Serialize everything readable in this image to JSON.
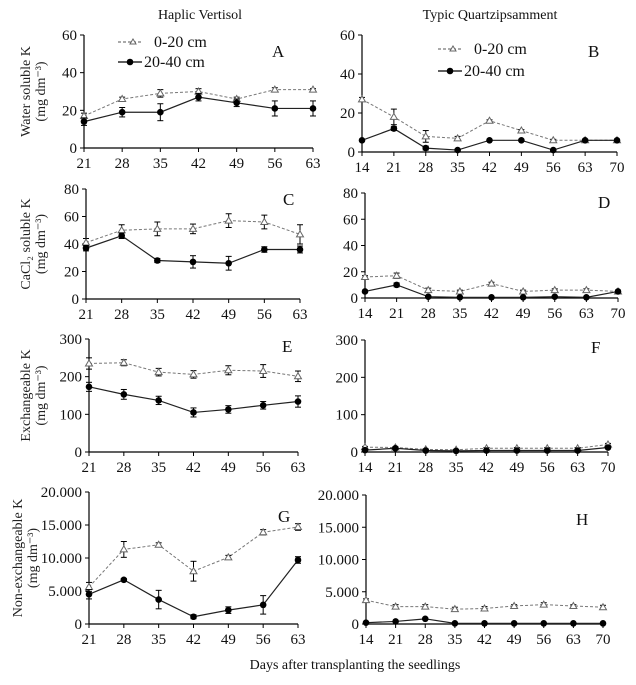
{
  "figure": {
    "column_titles": [
      "Haplic Vertisol",
      "Typic Quartzipsamment"
    ],
    "xlabel": "Days after transplanting the seedlings",
    "legend": {
      "series_a": "0-20 cm",
      "series_b": "20-40 cm"
    }
  },
  "chart_data": [
    {
      "type": "line",
      "panel": "A",
      "soil": "Haplic Vertisol",
      "ylabel_line1": "Water soluble K",
      "ylabel_line2": "(mg dm⁻³)",
      "x": [
        21,
        28,
        35,
        42,
        49,
        56,
        63
      ],
      "xticks": [
        "21",
        "28",
        "35",
        "42",
        "49",
        "56",
        "63"
      ],
      "ylim": [
        0,
        60
      ],
      "yticks": [
        "0",
        "20",
        "40",
        "60"
      ],
      "ytick_values": [
        0,
        20,
        40,
        60
      ],
      "legend": "top-left",
      "series": [
        {
          "name": "0-20 cm",
          "values": [
            17,
            26,
            29,
            30,
            26,
            31,
            31
          ],
          "errors": [
            1.5,
            1,
            2,
            1.5,
            1,
            1,
            0.5
          ]
        },
        {
          "name": "20-40 cm",
          "values": [
            14,
            19,
            19,
            27,
            24,
            21,
            21
          ],
          "errors": [
            2,
            2.5,
            4.5,
            2,
            2,
            4,
            4
          ]
        }
      ]
    },
    {
      "type": "line",
      "panel": "B",
      "soil": "Typic Quartzipsamment",
      "ylabel_line1": "",
      "ylabel_line2": "",
      "x": [
        14,
        21,
        28,
        35,
        42,
        49,
        56,
        63,
        70
      ],
      "xticks": [
        "14",
        "21",
        "28",
        "35",
        "42",
        "49",
        "56",
        "63",
        "70"
      ],
      "ylim": [
        0,
        60
      ],
      "yticks": [
        "0",
        "20",
        "40",
        "60"
      ],
      "ytick_values": [
        0,
        20,
        40,
        60
      ],
      "legend": "top-center",
      "series": [
        {
          "name": "0-20 cm",
          "values": [
            27,
            18,
            8,
            7,
            16,
            11,
            6,
            6,
            6
          ],
          "errors": [
            1,
            4,
            3,
            1,
            0.5,
            0.5,
            0.5,
            0.5,
            0.5
          ]
        },
        {
          "name": "20-40 cm",
          "values": [
            6,
            12,
            2,
            1,
            6,
            6,
            1,
            6,
            6
          ],
          "errors": [
            0.5,
            1,
            1,
            0.5,
            0.5,
            0.5,
            0.5,
            0.5,
            0.5
          ]
        }
      ]
    },
    {
      "type": "line",
      "panel": "C",
      "soil": "Haplic Vertisol",
      "ylabel_line1": "CaCl₂ soluble K",
      "ylabel_line2": "(mg dm⁻³)",
      "x": [
        21,
        28,
        35,
        42,
        49,
        56,
        63
      ],
      "xticks": [
        "21",
        "28",
        "35",
        "42",
        "49",
        "56",
        "63"
      ],
      "ylim": [
        0,
        80
      ],
      "yticks": [
        "0",
        "20",
        "40",
        "60",
        "80"
      ],
      "ytick_values": [
        0,
        20,
        40,
        60,
        80
      ],
      "series": [
        {
          "name": "0-20 cm",
          "values": [
            41,
            50,
            51,
            51,
            57,
            56,
            47
          ],
          "errors": [
            3,
            4,
            5,
            3.5,
            5,
            5,
            7
          ]
        },
        {
          "name": "20-40 cm",
          "values": [
            37,
            46,
            28,
            27,
            26,
            36,
            36
          ],
          "errors": [
            2,
            2,
            1.5,
            4.5,
            5,
            2,
            2.5
          ]
        }
      ]
    },
    {
      "type": "line",
      "panel": "D",
      "soil": "Typic Quartzipsamment",
      "ylabel_line1": "",
      "ylabel_line2": "",
      "x": [
        14,
        21,
        28,
        35,
        42,
        49,
        56,
        63,
        70
      ],
      "xticks": [
        "14",
        "21",
        "28",
        "35",
        "42",
        "49",
        "56",
        "63",
        "70"
      ],
      "ylim": [
        0,
        80
      ],
      "yticks": [
        "0",
        "20",
        "40",
        "60",
        "80"
      ],
      "ytick_values": [
        0,
        20,
        40,
        60,
        80
      ],
      "series": [
        {
          "name": "0-20 cm",
          "values": [
            16,
            17,
            6,
            5,
            11,
            5,
            6,
            6,
            5
          ],
          "errors": [
            1,
            2,
            1.5,
            1,
            1,
            1,
            1,
            1,
            0.5
          ]
        },
        {
          "name": "20-40 cm",
          "values": [
            5,
            10,
            1,
            0.5,
            0.5,
            0.5,
            1,
            0.5,
            5
          ],
          "errors": [
            0.5,
            1.5,
            0.5,
            0.3,
            0.3,
            0.3,
            0.3,
            0.3,
            0.5
          ]
        }
      ]
    },
    {
      "type": "line",
      "panel": "E",
      "soil": "Haplic Vertisol",
      "ylabel_line1": "Exchangeable K",
      "ylabel_line2": "(mg dm⁻³)",
      "x": [
        21,
        28,
        35,
        42,
        49,
        56,
        63
      ],
      "xticks": [
        "21",
        "28",
        "35",
        "42",
        "49",
        "56",
        "63"
      ],
      "ylim": [
        0,
        300
      ],
      "yticks": [
        "0",
        "100",
        "200",
        "300"
      ],
      "ytick_values": [
        0,
        100,
        200,
        300
      ],
      "series": [
        {
          "name": "0-20 cm",
          "values": [
            235,
            237,
            212,
            206,
            217,
            215,
            201
          ],
          "errors": [
            15,
            8,
            10,
            10,
            12,
            17,
            14
          ]
        },
        {
          "name": "20-40 cm",
          "values": [
            173,
            153,
            137,
            105,
            113,
            124,
            134
          ],
          "errors": [
            12,
            13,
            11,
            12,
            10,
            10,
            15
          ]
        }
      ]
    },
    {
      "type": "line",
      "panel": "F",
      "soil": "Typic Quartzipsamment",
      "ylabel_line1": "",
      "ylabel_line2": "",
      "x": [
        14,
        21,
        28,
        35,
        42,
        49,
        56,
        63,
        70
      ],
      "xticks": [
        "14",
        "21",
        "28",
        "35",
        "42",
        "49",
        "56",
        "63",
        "70"
      ],
      "ylim": [
        0,
        300
      ],
      "yticks": [
        "0",
        "100",
        "200",
        "300"
      ],
      "ytick_values": [
        0,
        100,
        200,
        300
      ],
      "series": [
        {
          "name": "0-20 cm",
          "values": [
            13,
            12,
            7,
            6,
            10,
            10,
            10,
            10,
            20
          ],
          "errors": [
            2,
            2,
            1,
            1,
            2,
            2,
            2,
            2,
            3
          ]
        },
        {
          "name": "20-40 cm",
          "values": [
            5,
            10,
            4,
            3,
            4,
            4,
            4,
            4,
            12
          ],
          "errors": [
            2,
            2,
            1,
            1,
            1,
            1,
            1,
            1,
            3
          ]
        }
      ]
    },
    {
      "type": "line",
      "panel": "G",
      "soil": "Haplic Vertisol",
      "ylabel_line1": "Non-exchangeable K",
      "ylabel_line2": "(mg dm⁻³)",
      "x": [
        21,
        28,
        35,
        42,
        49,
        56,
        63
      ],
      "xticks": [
        "21",
        "28",
        "35",
        "42",
        "49",
        "56",
        "63"
      ],
      "ylim": [
        0,
        20000
      ],
      "yticks": [
        "0",
        "5.000",
        "10.000",
        "15.000",
        "20.000"
      ],
      "ytick_values": [
        0,
        5000,
        10000,
        15000,
        20000
      ],
      "series": [
        {
          "name": "0-20 cm",
          "values": [
            5600,
            11300,
            12000,
            8000,
            10100,
            13900,
            14700
          ],
          "errors": [
            700,
            1200,
            300,
            1500,
            300,
            400,
            500
          ]
        },
        {
          "name": "20-40 cm",
          "values": [
            4500,
            6700,
            3700,
            1100,
            2100,
            2900,
            9700
          ],
          "errors": [
            700,
            200,
            1400,
            300,
            500,
            1400,
            500
          ]
        }
      ]
    },
    {
      "type": "line",
      "panel": "H",
      "soil": "Typic Quartzipsamment",
      "ylabel_line1": "",
      "ylabel_line2": "",
      "x": [
        14,
        21,
        28,
        35,
        42,
        49,
        56,
        63,
        70
      ],
      "xticks": [
        "14",
        "21",
        "28",
        "35",
        "42",
        "49",
        "56",
        "63",
        "70"
      ],
      "ylim": [
        0,
        20000
      ],
      "yticks": [
        "0",
        "5.000",
        "10.000",
        "15.000",
        "20.000"
      ],
      "ytick_values": [
        0,
        5000,
        10000,
        15000,
        20000
      ],
      "series": [
        {
          "name": "0-20 cm",
          "values": [
            3700,
            2700,
            2700,
            2300,
            2400,
            2800,
            3000,
            2800,
            2600
          ],
          "errors": [
            200,
            300,
            300,
            300,
            300,
            200,
            300,
            200,
            300
          ]
        },
        {
          "name": "20-40 cm",
          "values": [
            200,
            400,
            800,
            100,
            100,
            100,
            100,
            100,
            100
          ],
          "errors": [
            50,
            50,
            100,
            30,
            30,
            30,
            30,
            30,
            30
          ]
        }
      ]
    }
  ]
}
